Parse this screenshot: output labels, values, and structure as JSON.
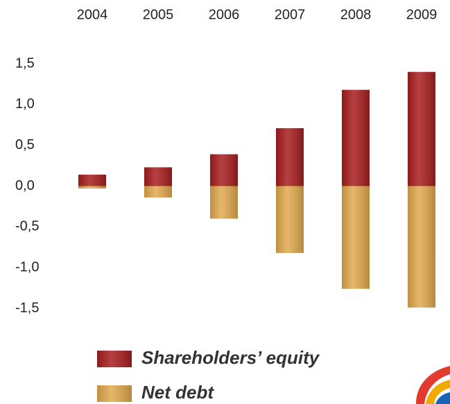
{
  "chart_data": {
    "type": "bar",
    "categories": [
      "2004",
      "2005",
      "2006",
      "2007",
      "2008",
      "2009"
    ],
    "series": [
      {
        "name": "Shareholders’ equity",
        "color": "#a81e1e",
        "values": [
          0.14,
          0.23,
          0.39,
          0.71,
          1.18,
          1.4
        ]
      },
      {
        "name": "Net debt",
        "color": "#e2aa4e",
        "values": [
          -0.03,
          -0.14,
          -0.4,
          -0.82,
          -1.26,
          -1.49
        ]
      }
    ],
    "ylim": [
      -1.5,
      1.5
    ],
    "yticks": [
      {
        "value": 1.5,
        "label": "1,5"
      },
      {
        "value": 1.0,
        "label": "1,0"
      },
      {
        "value": 0.5,
        "label": "0,5"
      },
      {
        "value": 0,
        "label": "0,0"
      },
      {
        "value": -0.5,
        "label": "-0,5"
      },
      {
        "value": -1.0,
        "label": "-1,0"
      },
      {
        "value": -1.5,
        "label": "-1,5"
      }
    ],
    "grid": false,
    "legend": "bottom"
  }
}
